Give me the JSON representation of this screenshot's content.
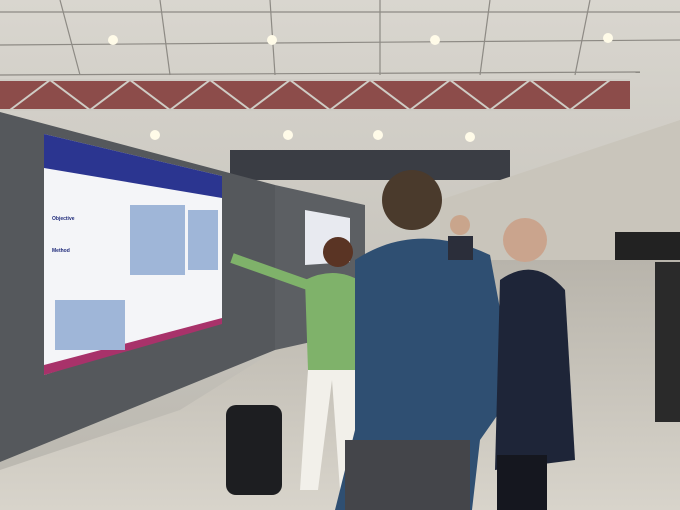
{
  "poster": {
    "sections": [
      "Objective",
      "Method"
    ]
  }
}
